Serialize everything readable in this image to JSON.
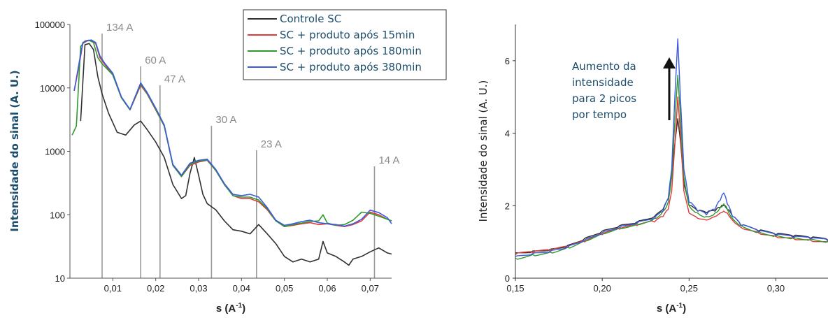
{
  "chart_data": [
    {
      "type": "line",
      "title": "",
      "xlabel": "s (A",
      "xlabel_sup": "-1",
      "xlabel_close": ")",
      "ylabel": "Intensidade do sinal (A. U.)",
      "yscale": "log",
      "xlim": [
        0.0,
        0.075
      ],
      "ylim": [
        10,
        100000
      ],
      "xticks": [
        {
          "value": 0.01,
          "label": "0,01"
        },
        {
          "value": 0.02,
          "label": "0,02"
        },
        {
          "value": 0.03,
          "label": "0,03"
        },
        {
          "value": 0.04,
          "label": "0,04"
        },
        {
          "value": 0.05,
          "label": "0,05"
        },
        {
          "value": 0.06,
          "label": "0,06"
        },
        {
          "value": 0.07,
          "label": "0,07"
        }
      ],
      "yticks": [
        {
          "value": 10,
          "label": "10"
        },
        {
          "value": 100,
          "label": "100"
        },
        {
          "value": 1000,
          "label": "1000"
        },
        {
          "value": 10000,
          "label": "10000"
        },
        {
          "value": 100000,
          "label": "100000"
        }
      ],
      "legend_position": "top-right",
      "reference_lines": [
        {
          "x": 0.0075,
          "label": "134 A"
        },
        {
          "x": 0.0165,
          "label": "60 A"
        },
        {
          "x": 0.021,
          "label": "47 A"
        },
        {
          "x": 0.033,
          "label": "30 A"
        },
        {
          "x": 0.0435,
          "label": "23 A"
        },
        {
          "x": 0.071,
          "label": "14 A"
        }
      ],
      "series": [
        {
          "name": "Controle SC",
          "color": "#303030",
          "x": [
            0.0025,
            0.0035,
            0.0045,
            0.0055,
            0.0065,
            0.0075,
            0.009,
            0.011,
            0.013,
            0.015,
            0.0165,
            0.018,
            0.02,
            0.022,
            0.024,
            0.026,
            0.027,
            0.028,
            0.029,
            0.03,
            0.031,
            0.032,
            0.034,
            0.036,
            0.038,
            0.04,
            0.042,
            0.044,
            0.046,
            0.048,
            0.05,
            0.052,
            0.054,
            0.056,
            0.058,
            0.059,
            0.06,
            0.062,
            0.064,
            0.065,
            0.066,
            0.068,
            0.07,
            0.072,
            0.074,
            0.075
          ],
          "y": [
            3000,
            48000,
            50000,
            40000,
            15000,
            8000,
            4000,
            2000,
            1800,
            2600,
            3000,
            2200,
            1400,
            800,
            300,
            180,
            200,
            450,
            800,
            420,
            210,
            150,
            120,
            80,
            58,
            55,
            50,
            70,
            50,
            35,
            22,
            18,
            20,
            18,
            20,
            38,
            25,
            22,
            18,
            16,
            20,
            22,
            26,
            30,
            25,
            24
          ]
        },
        {
          "name": "SC + produto após 15min",
          "color": "#e03a3a",
          "x": [
            0.001,
            0.002,
            0.003,
            0.004,
            0.005,
            0.006,
            0.007,
            0.008,
            0.01,
            0.012,
            0.014,
            0.0165,
            0.018,
            0.02,
            0.022,
            0.024,
            0.026,
            0.028,
            0.03,
            0.032,
            0.034,
            0.036,
            0.038,
            0.04,
            0.042,
            0.044,
            0.046,
            0.048,
            0.05,
            0.052,
            0.054,
            0.056,
            0.058,
            0.06,
            0.062,
            0.064,
            0.066,
            0.068,
            0.07,
            0.072,
            0.074,
            0.075
          ],
          "y": [
            9000,
            20000,
            50000,
            55000,
            56000,
            50000,
            30000,
            24000,
            16000,
            7000,
            4500,
            11000,
            8000,
            4500,
            2500,
            600,
            400,
            600,
            680,
            720,
            500,
            300,
            200,
            180,
            180,
            160,
            120,
            80,
            65,
            68,
            72,
            75,
            70,
            72,
            68,
            65,
            70,
            80,
            110,
            100,
            85,
            80
          ]
        },
        {
          "name": "SC + produto após 180min",
          "color": "#2e9a2e",
          "x": [
            0.0005,
            0.0015,
            0.0025,
            0.0035,
            0.0045,
            0.0055,
            0.0065,
            0.0075,
            0.01,
            0.012,
            0.014,
            0.0165,
            0.018,
            0.02,
            0.022,
            0.024,
            0.026,
            0.028,
            0.03,
            0.032,
            0.034,
            0.036,
            0.038,
            0.04,
            0.042,
            0.044,
            0.046,
            0.048,
            0.05,
            0.052,
            0.054,
            0.056,
            0.058,
            0.059,
            0.06,
            0.062,
            0.064,
            0.066,
            0.068,
            0.07,
            0.072,
            0.074,
            0.075
          ],
          "y": [
            1800,
            2500,
            45000,
            55000,
            56000,
            52000,
            30000,
            24000,
            16000,
            7000,
            4500,
            11500,
            8200,
            4600,
            2500,
            600,
            400,
            620,
            700,
            730,
            500,
            300,
            200,
            190,
            190,
            170,
            125,
            80,
            65,
            70,
            74,
            78,
            80,
            100,
            74,
            68,
            70,
            82,
            110,
            105,
            95,
            85,
            80
          ]
        },
        {
          "name": "SC + produto após 380min",
          "color": "#3b5bdc",
          "x": [
            0.001,
            0.002,
            0.003,
            0.004,
            0.005,
            0.006,
            0.007,
            0.008,
            0.01,
            0.012,
            0.014,
            0.0165,
            0.018,
            0.02,
            0.022,
            0.024,
            0.026,
            0.028,
            0.03,
            0.032,
            0.034,
            0.036,
            0.038,
            0.04,
            0.042,
            0.044,
            0.046,
            0.048,
            0.05,
            0.052,
            0.054,
            0.056,
            0.058,
            0.06,
            0.062,
            0.064,
            0.066,
            0.068,
            0.07,
            0.072,
            0.074,
            0.075
          ],
          "y": [
            9000,
            22000,
            52000,
            56000,
            57000,
            52000,
            32000,
            25000,
            17000,
            7200,
            4600,
            12000,
            8500,
            4800,
            2600,
            620,
            420,
            650,
            720,
            750,
            520,
            310,
            210,
            200,
            210,
            190,
            130,
            82,
            68,
            72,
            78,
            82,
            75,
            72,
            70,
            66,
            72,
            85,
            118,
            108,
            90,
            72
          ]
        }
      ]
    },
    {
      "type": "line",
      "title": "",
      "xlabel": "s (A",
      "xlabel_sup": "-1",
      "xlabel_close": ")",
      "ylabel": "Intensidade do sinal (A. U.)",
      "xlim": [
        0.15,
        0.33
      ],
      "ylim": [
        0,
        7
      ],
      "xticks": [
        {
          "value": 0.15,
          "label": "0,15"
        },
        {
          "value": 0.2,
          "label": "0,20"
        },
        {
          "value": 0.25,
          "label": "0,25"
        },
        {
          "value": 0.3,
          "label": "0,30"
        }
      ],
      "yticks": [
        {
          "value": 0,
          "label": "0"
        },
        {
          "value": 2,
          "label": "2"
        },
        {
          "value": 4,
          "label": "4"
        },
        {
          "value": 6,
          "label": "6"
        }
      ],
      "annotation": [
        "Aumento da",
        "intensidade",
        "para 2 picos",
        "por tempo"
      ],
      "series": [
        {
          "color": "#303030",
          "x": [
            0.15,
            0.16,
            0.17,
            0.18,
            0.19,
            0.2,
            0.21,
            0.22,
            0.23,
            0.235,
            0.238,
            0.24,
            0.242,
            0.2435,
            0.245,
            0.247,
            0.25,
            0.255,
            0.26,
            0.265,
            0.268,
            0.27,
            0.272,
            0.275,
            0.28,
            0.29,
            0.3,
            0.31,
            0.32,
            0.33
          ],
          "y": [
            0.7,
            0.75,
            0.8,
            0.9,
            1.1,
            1.3,
            1.45,
            1.55,
            1.7,
            1.9,
            2.2,
            2.8,
            3.8,
            4.4,
            3.8,
            2.6,
            2.0,
            1.85,
            1.8,
            1.85,
            1.95,
            2.0,
            1.9,
            1.7,
            1.45,
            1.3,
            1.2,
            1.15,
            1.1,
            1.05
          ]
        },
        {
          "color": "#e03a3a",
          "x": [
            0.15,
            0.16,
            0.17,
            0.18,
            0.19,
            0.2,
            0.21,
            0.22,
            0.23,
            0.235,
            0.238,
            0.24,
            0.242,
            0.2435,
            0.245,
            0.247,
            0.25,
            0.255,
            0.26,
            0.265,
            0.268,
            0.27,
            0.272,
            0.275,
            0.28,
            0.29,
            0.3,
            0.31,
            0.32,
            0.33
          ],
          "y": [
            0.65,
            0.7,
            0.75,
            0.85,
            1.0,
            1.2,
            1.35,
            1.45,
            1.55,
            1.7,
            1.9,
            2.4,
            3.8,
            5.0,
            4.0,
            2.4,
            1.8,
            1.65,
            1.6,
            1.7,
            1.8,
            1.85,
            1.8,
            1.6,
            1.4,
            1.25,
            1.15,
            1.1,
            1.05,
            1.0
          ]
        },
        {
          "color": "#2e9a2e",
          "x": [
            0.15,
            0.16,
            0.17,
            0.18,
            0.19,
            0.2,
            0.21,
            0.22,
            0.23,
            0.235,
            0.238,
            0.24,
            0.242,
            0.2435,
            0.245,
            0.247,
            0.25,
            0.255,
            0.26,
            0.265,
            0.268,
            0.27,
            0.272,
            0.275,
            0.28,
            0.29,
            0.3,
            0.31,
            0.32,
            0.33
          ],
          "y": [
            0.55,
            0.65,
            0.72,
            0.85,
            1.05,
            1.25,
            1.4,
            1.5,
            1.65,
            1.85,
            2.1,
            2.8,
            4.5,
            5.6,
            4.5,
            2.8,
            2.0,
            1.8,
            1.7,
            1.8,
            1.95,
            2.05,
            1.9,
            1.65,
            1.45,
            1.28,
            1.18,
            1.12,
            1.08,
            1.02
          ]
        },
        {
          "color": "#3b5bdc",
          "x": [
            0.15,
            0.16,
            0.17,
            0.18,
            0.19,
            0.2,
            0.21,
            0.22,
            0.23,
            0.235,
            0.238,
            0.24,
            0.242,
            0.2435,
            0.245,
            0.247,
            0.25,
            0.255,
            0.26,
            0.265,
            0.268,
            0.27,
            0.272,
            0.275,
            0.28,
            0.29,
            0.3,
            0.31,
            0.32,
            0.33
          ],
          "y": [
            0.6,
            0.68,
            0.74,
            0.86,
            1.05,
            1.25,
            1.4,
            1.52,
            1.65,
            1.85,
            2.2,
            3.0,
            5.2,
            6.6,
            5.0,
            3.0,
            2.1,
            1.85,
            1.75,
            1.9,
            2.15,
            2.35,
            2.05,
            1.7,
            1.45,
            1.28,
            1.18,
            1.12,
            1.08,
            1.03
          ]
        }
      ]
    }
  ]
}
